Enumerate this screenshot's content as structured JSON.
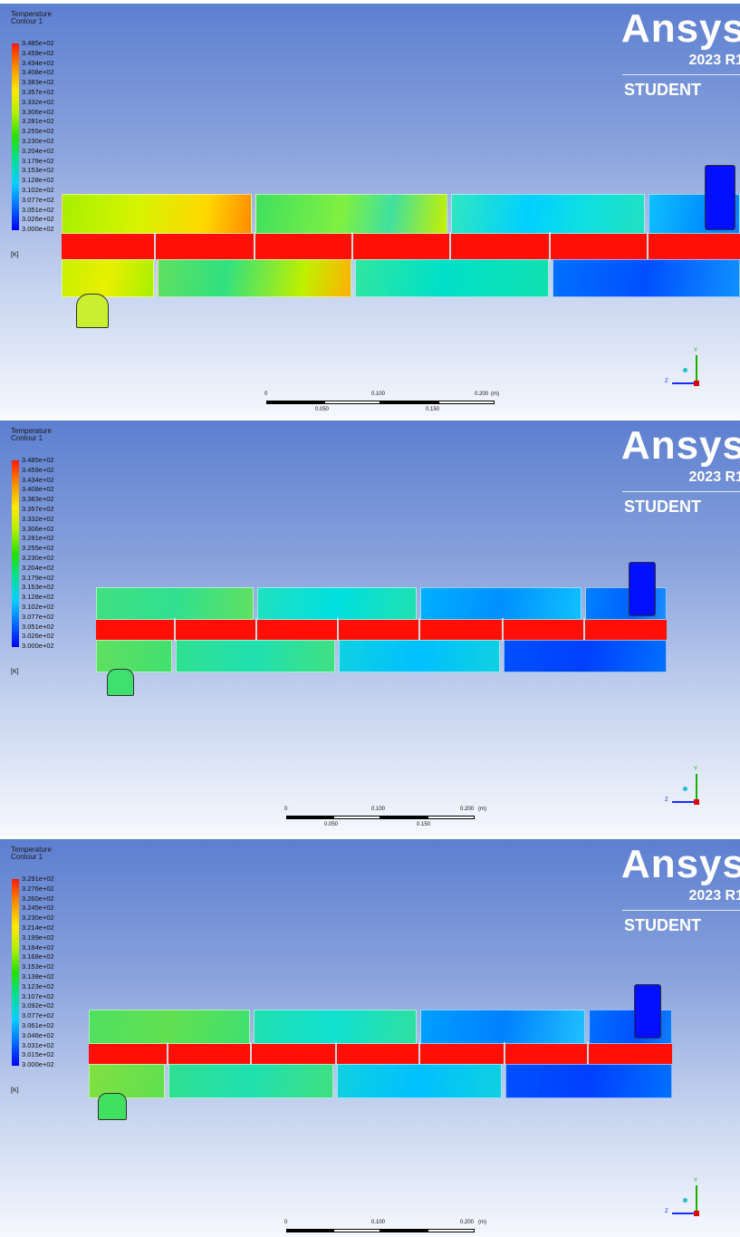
{
  "panels": [
    {
      "legend": {
        "title": "Temperature",
        "subtitle": "Contour 1",
        "ticks": [
          "3.485e+02",
          "3.459e+02",
          "3.434e+02",
          "3.408e+02",
          "3.383e+02",
          "3.357e+02",
          "3.332e+02",
          "3.306e+02",
          "3.281e+02",
          "3.255e+02",
          "3.230e+02",
          "3.204e+02",
          "3.179e+02",
          "3.153e+02",
          "3.128e+02",
          "3.102e+02",
          "3.077e+02",
          "3.051e+02",
          "3.026e+02",
          "3.000e+02"
        ],
        "unit": "[K]"
      },
      "brand": {
        "logo": "Ansys",
        "version": "2023 R1",
        "edition": "STUDENT"
      },
      "scale": {
        "labels_top": [
          "0",
          "0.100",
          "0.200"
        ],
        "labels_bottom": [
          "0.050",
          "0.150"
        ],
        "unit": "(m)"
      },
      "axes": {
        "y": "Y",
        "z": "Z"
      }
    },
    {
      "legend": {
        "title": "Temperature",
        "subtitle": "Contour 1",
        "ticks": [
          "3.485e+02",
          "3.459e+02",
          "3.434e+02",
          "3.408e+02",
          "3.383e+02",
          "3.357e+02",
          "3.332e+02",
          "3.306e+02",
          "3.281e+02",
          "3.255e+02",
          "3.230e+02",
          "3.204e+02",
          "3.179e+02",
          "3.153e+02",
          "3.128e+02",
          "3.102e+02",
          "3.077e+02",
          "3.051e+02",
          "3.026e+02",
          "3.000e+02"
        ],
        "unit": "[K]"
      },
      "brand": {
        "logo": "Ansys",
        "version": "2023 R1",
        "edition": "STUDENT"
      },
      "scale": {
        "labels_top": [
          "0",
          "0.100",
          "0.200"
        ],
        "labels_bottom": [
          "0.050",
          "0.150"
        ],
        "unit": "(m)"
      },
      "axes": {
        "y": "Y",
        "z": "Z"
      }
    },
    {
      "legend": {
        "title": "Temperature",
        "subtitle": "Contour 1",
        "ticks": [
          "3.291e+02",
          "3.276e+02",
          "3.260e+02",
          "3.245e+02",
          "3.230e+02",
          "3.214e+02",
          "3.199e+02",
          "3.184e+02",
          "3.168e+02",
          "3.153e+02",
          "3.138e+02",
          "3.123e+02",
          "3.107e+02",
          "3.092e+02",
          "3.077e+02",
          "3.061e+02",
          "3.046e+02",
          "3.031e+02",
          "3.015e+02",
          "3.000e+02"
        ],
        "unit": "[K]"
      },
      "brand": {
        "logo": "Ansys",
        "version": "2023 R1",
        "edition": "STUDENT"
      },
      "scale": {
        "labels_top": [
          "0",
          "0.100",
          "0.200"
        ],
        "labels_bottom": [],
        "unit": "(m)"
      },
      "axes": {
        "y": "Y",
        "z": "Z"
      }
    }
  ],
  "colors": {
    "pipe": "#ff0f05",
    "background_top": "#5d7fd0",
    "background_bottom": "#f6f8fd"
  }
}
